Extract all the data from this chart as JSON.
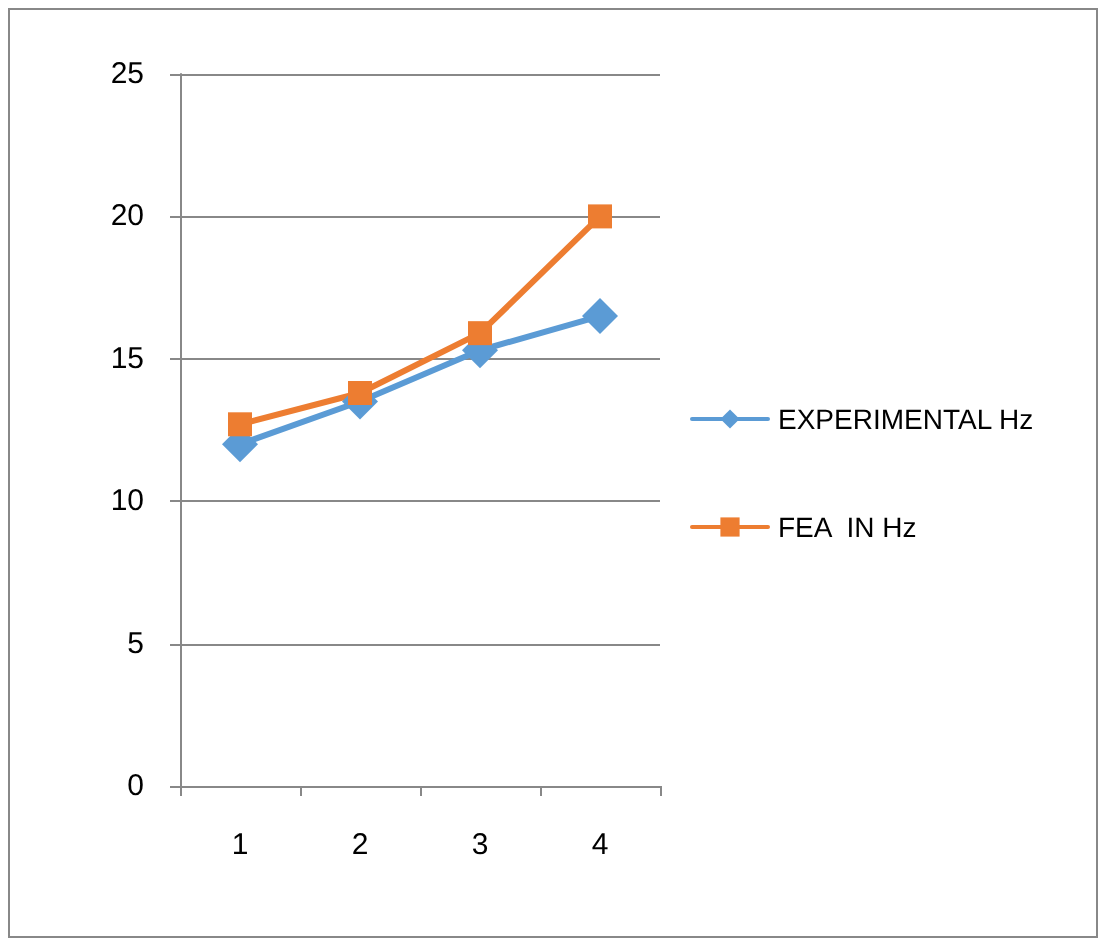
{
  "chart_data": {
    "type": "line",
    "categories": [
      "1",
      "2",
      "3",
      "4"
    ],
    "series": [
      {
        "name": "EXPERIMENTAL Hz",
        "color": "#5b9bd5",
        "marker": "diamond",
        "values": [
          12.0,
          13.5,
          15.3,
          16.5
        ]
      },
      {
        "name": "FEA  IN Hz",
        "color": "#ed7d31",
        "marker": "square",
        "values": [
          12.7,
          13.8,
          15.9,
          20.0
        ]
      }
    ],
    "ylim": [
      0,
      25
    ],
    "yticks": [
      0,
      5,
      10,
      15,
      20,
      25
    ],
    "grid": "y",
    "legend": "right"
  }
}
